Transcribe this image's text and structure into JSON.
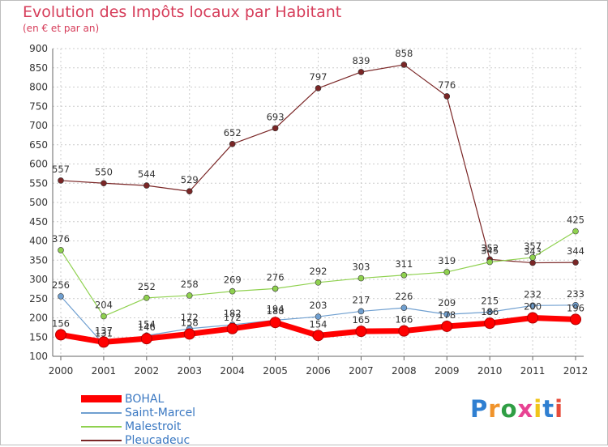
{
  "chart_data": {
    "type": "line",
    "title": "Evolution des Impôts locaux par Habitant",
    "subtitle": "(en € et par an)",
    "xlabel": "",
    "ylabel": "",
    "ylim": [
      100,
      900
    ],
    "yticks": [
      100,
      150,
      200,
      250,
      300,
      350,
      400,
      450,
      500,
      550,
      600,
      650,
      700,
      750,
      800,
      850,
      900
    ],
    "categories": [
      "2000",
      "2001",
      "2002",
      "2003",
      "2004",
      "2005",
      "2006",
      "2007",
      "2008",
      "2009",
      "2010",
      "2011",
      "2012"
    ],
    "grid": true,
    "legend_position": "bottom-left",
    "series": [
      {
        "name": "Pleucadeuc",
        "color": "#7a2626",
        "values": [
          557,
          550,
          544,
          529,
          652,
          693,
          797,
          839,
          858,
          776,
          352,
          343,
          344
        ],
        "labels": [
          "557",
          "550",
          "544",
          "529",
          "652",
          "693",
          "797",
          "839",
          "858",
          "776",
          "352",
          "343",
          "344"
        ]
      },
      {
        "name": "Malestroit",
        "color": "#8fd14f",
        "values": [
          376,
          204,
          252,
          258,
          269,
          276,
          292,
          303,
          311,
          319,
          345,
          357,
          425
        ],
        "labels": [
          "376",
          "204",
          "252",
          "258",
          "269",
          "276",
          "292",
          "303",
          "311",
          "319",
          "345",
          "357",
          "425"
        ]
      },
      {
        "name": "Saint-Marcel",
        "color": "#6f9fd0",
        "values": [
          256,
          131,
          154,
          172,
          182,
          194,
          203,
          217,
          226,
          209,
          215,
          232,
          233
        ],
        "labels": [
          "256",
          "131",
          "154",
          "172",
          "182",
          "194",
          "203",
          "217",
          "226",
          "209",
          "215",
          "232",
          "233"
        ]
      },
      {
        "name": "BOHAL",
        "color": "#ff0000",
        "values": [
          156,
          137,
          146,
          158,
          172,
          188,
          154,
          165,
          166,
          178,
          186,
          200,
          196
        ],
        "labels": [
          "156",
          "137",
          "146",
          "158",
          "172",
          "188",
          "154",
          "165",
          "166",
          "178",
          "186",
          "200",
          "196"
        ]
      }
    ],
    "legend": [
      "BOHAL",
      "Saint-Marcel",
      "Malestroit",
      "Pleucadeuc"
    ]
  },
  "logo": {
    "text": "Proxiti",
    "colors": [
      "#2f7fd1",
      "#f0932b",
      "#2f9e44",
      "#e84393",
      "#f0c419",
      "#2f7fd1",
      "#e74c3c"
    ]
  }
}
